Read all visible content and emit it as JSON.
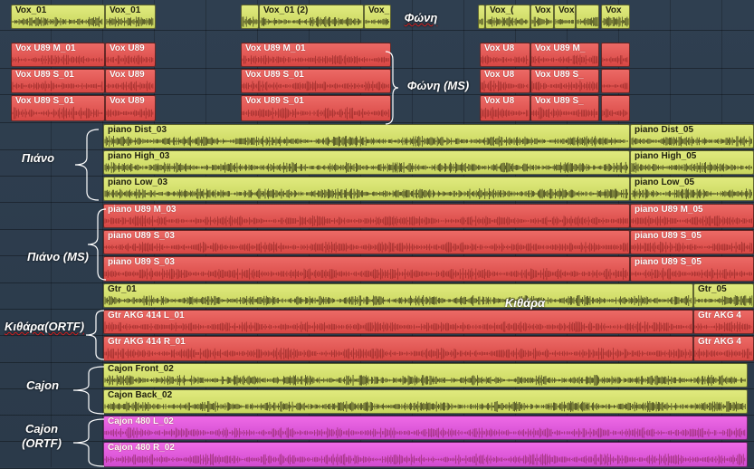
{
  "tracks": [
    {
      "clips": [
        {
          "name": "Vox_01",
          "color": "yellow"
        },
        {
          "name": "Vox_01",
          "color": "yellow"
        },
        {
          "name": "",
          "color": "yellow"
        },
        {
          "name": "Vox_01 (2)",
          "color": "yellow"
        },
        {
          "name": "Vox_",
          "color": "yellow"
        },
        {
          "name": "",
          "color": "yellow"
        },
        {
          "name": "Vox_(",
          "color": "yellow"
        },
        {
          "name": "Vox",
          "color": "yellow"
        },
        {
          "name": "Vox_",
          "color": "yellow"
        },
        {
          "name": "",
          "color": "yellow"
        },
        {
          "name": "Vox",
          "color": "yellow"
        }
      ]
    },
    {
      "clips": [
        {
          "name": "Vox U89 M_01",
          "color": "red"
        },
        {
          "name": "Vox U89",
          "color": "red"
        },
        {
          "name": "Vox U89 M_01",
          "color": "red"
        },
        {
          "name": "Vox U8",
          "color": "red"
        },
        {
          "name": "Vox U89 M_",
          "color": "red"
        },
        {
          "name": "",
          "color": "red"
        }
      ]
    },
    {
      "clips": [
        {
          "name": "Vox U89 S_01",
          "color": "red"
        },
        {
          "name": "Vox U89",
          "color": "red"
        },
        {
          "name": "Vox U89 S_01",
          "color": "red"
        },
        {
          "name": "Vox U8",
          "color": "red"
        },
        {
          "name": "Vox U89 S_",
          "color": "red"
        },
        {
          "name": "",
          "color": "red"
        }
      ]
    },
    {
      "clips": [
        {
          "name": "Vox U89 S_01",
          "color": "red"
        },
        {
          "name": "Vox U89",
          "color": "red"
        },
        {
          "name": "Vox U89 S_01",
          "color": "red"
        },
        {
          "name": "Vox U8",
          "color": "red"
        },
        {
          "name": "Vox U89 S_",
          "color": "red"
        },
        {
          "name": "",
          "color": "red"
        }
      ]
    },
    {
      "clips": [
        {
          "name": "piano Dist_03",
          "color": "yellow"
        },
        {
          "name": "piano Dist_05",
          "color": "yellow"
        }
      ]
    },
    {
      "clips": [
        {
          "name": "piano High_03",
          "color": "yellow"
        },
        {
          "name": "piano High_05",
          "color": "yellow"
        }
      ]
    },
    {
      "clips": [
        {
          "name": "piano Low_03",
          "color": "yellow"
        },
        {
          "name": "piano Low_05",
          "color": "yellow"
        }
      ]
    },
    {
      "clips": [
        {
          "name": "piano U89 M_03",
          "color": "red"
        },
        {
          "name": "piano U89 M_05",
          "color": "red"
        }
      ]
    },
    {
      "clips": [
        {
          "name": "piano U89 S_03",
          "color": "red"
        },
        {
          "name": "piano U89 S_05",
          "color": "red"
        }
      ]
    },
    {
      "clips": [
        {
          "name": "piano U89 S_03",
          "color": "red"
        },
        {
          "name": "piano U89 S_05",
          "color": "red"
        }
      ]
    },
    {
      "clips": [
        {
          "name": "Gtr_01",
          "color": "yellow"
        },
        {
          "name": "Gtr_05",
          "color": "yellow"
        }
      ]
    },
    {
      "clips": [
        {
          "name": "Gtr AKG 414 L_01",
          "color": "red"
        },
        {
          "name": "Gtr AKG 4",
          "color": "red"
        }
      ]
    },
    {
      "clips": [
        {
          "name": "Gtr AKG 414 R_01",
          "color": "red"
        },
        {
          "name": "Gtr AKG 4",
          "color": "red"
        }
      ]
    },
    {
      "clips": [
        {
          "name": "Cajon Front_02",
          "color": "yellow"
        }
      ]
    },
    {
      "clips": [
        {
          "name": "Cajon Back_02",
          "color": "yellow"
        }
      ]
    },
    {
      "clips": [
        {
          "name": "Cajon 480 L_02",
          "color": "pink"
        }
      ]
    },
    {
      "clips": [
        {
          "name": "Cajon 480 R_02",
          "color": "pink"
        }
      ]
    }
  ],
  "annotations": {
    "voice": "Φώνη",
    "voice_ms": "Φώνη (MS)",
    "piano": "Πιάνο",
    "piano_ms": "Πιάνο (MS)",
    "guitar": "Κιθάρα",
    "guitar_ortf": "Κιθάρα(ORTF)",
    "cajon": "Cajon",
    "cajon_ortf": "Cajon\n(ORTF)"
  },
  "colors": {
    "yellow": "#d6e070",
    "red": "#e05452",
    "pink": "#e35ce0",
    "background": "#2e3e4e",
    "waveform": "#2a2a10"
  }
}
